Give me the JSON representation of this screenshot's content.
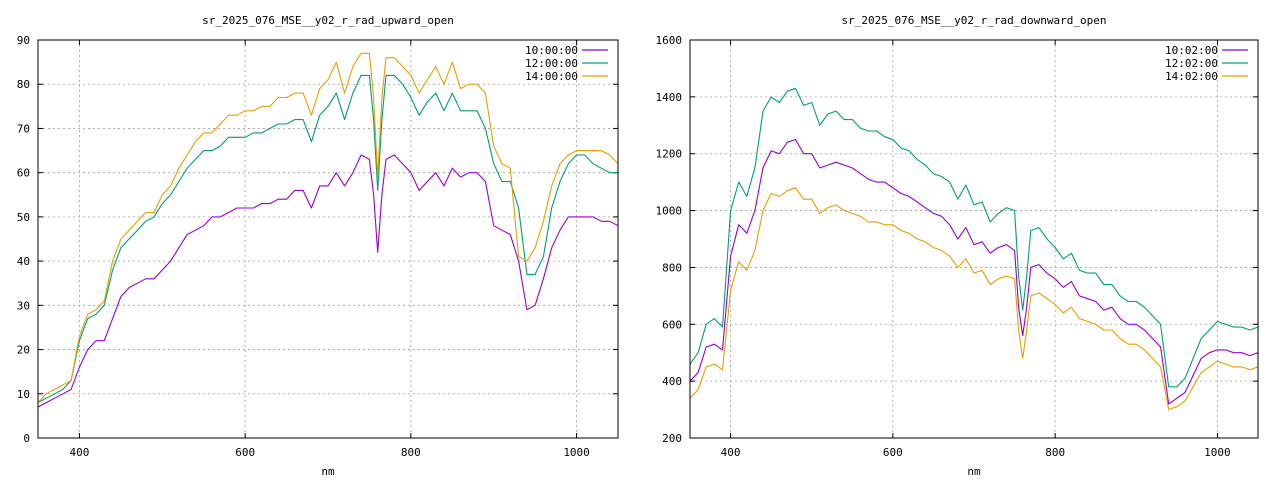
{
  "chart_data": [
    {
      "type": "line",
      "title": "sr_2025_076_MSE__y02_r_rad_upward_open",
      "xlabel": "nm",
      "ylabel": "",
      "xlim": [
        350,
        1050
      ],
      "ylim": [
        0,
        90
      ],
      "xticks": [
        400,
        600,
        800,
        1000
      ],
      "yticks": [
        0,
        10,
        20,
        30,
        40,
        50,
        60,
        70,
        80,
        90
      ],
      "grid": true,
      "legend_position": "top-right",
      "series": [
        {
          "name": "10:00:00",
          "color": "#9400d3",
          "x": [
            350,
            360,
            370,
            380,
            390,
            400,
            410,
            420,
            430,
            440,
            450,
            460,
            470,
            480,
            490,
            500,
            510,
            520,
            530,
            540,
            550,
            560,
            570,
            580,
            590,
            600,
            610,
            620,
            630,
            640,
            650,
            660,
            670,
            680,
            690,
            700,
            710,
            720,
            730,
            740,
            750,
            755,
            760,
            765,
            770,
            780,
            790,
            800,
            810,
            820,
            830,
            840,
            850,
            860,
            870,
            880,
            890,
            900,
            910,
            920,
            930,
            940,
            950,
            960,
            970,
            980,
            990,
            1000,
            1010,
            1020,
            1030,
            1040,
            1050
          ],
          "y": [
            7,
            8,
            9,
            10,
            11,
            16,
            20,
            22,
            22,
            27,
            32,
            34,
            35,
            36,
            36,
            38,
            40,
            43,
            46,
            47,
            48,
            50,
            50,
            51,
            52,
            52,
            52,
            53,
            53,
            54,
            54,
            56,
            56,
            52,
            57,
            57,
            60,
            57,
            60,
            64,
            63,
            55,
            42,
            55,
            63,
            64,
            62,
            60,
            56,
            58,
            60,
            57,
            61,
            59,
            60,
            60,
            58,
            48,
            47,
            46,
            40,
            29,
            30,
            36,
            43,
            47,
            50,
            50,
            50,
            50,
            49,
            49,
            48
          ]
        },
        {
          "name": "12:00:00",
          "color": "#009e73",
          "x": [
            350,
            360,
            370,
            380,
            390,
            400,
            410,
            420,
            430,
            440,
            450,
            460,
            470,
            480,
            490,
            500,
            510,
            520,
            530,
            540,
            550,
            560,
            570,
            580,
            590,
            600,
            610,
            620,
            630,
            640,
            650,
            660,
            670,
            680,
            690,
            700,
            710,
            720,
            730,
            740,
            750,
            755,
            760,
            765,
            770,
            780,
            790,
            800,
            810,
            820,
            830,
            840,
            850,
            860,
            870,
            880,
            890,
            900,
            910,
            920,
            930,
            940,
            950,
            960,
            970,
            980,
            990,
            1000,
            1010,
            1020,
            1030,
            1040,
            1050
          ],
          "y": [
            8,
            9,
            10,
            11,
            13,
            22,
            27,
            28,
            30,
            38,
            43,
            45,
            47,
            49,
            50,
            53,
            55,
            58,
            61,
            63,
            65,
            65,
            66,
            68,
            68,
            68,
            69,
            69,
            70,
            71,
            71,
            72,
            72,
            67,
            73,
            75,
            78,
            72,
            78,
            82,
            82,
            72,
            56,
            72,
            82,
            82,
            80,
            77,
            73,
            76,
            78,
            74,
            78,
            74,
            74,
            74,
            70,
            62,
            58,
            58,
            52,
            37,
            37,
            41,
            52,
            58,
            62,
            64,
            64,
            62,
            61,
            60,
            60
          ]
        },
        {
          "name": "14:00:00",
          "color": "#e69f00",
          "x": [
            350,
            360,
            370,
            380,
            390,
            400,
            410,
            420,
            430,
            440,
            450,
            460,
            470,
            480,
            490,
            500,
            510,
            520,
            530,
            540,
            550,
            560,
            570,
            580,
            590,
            600,
            610,
            620,
            630,
            640,
            650,
            660,
            670,
            680,
            690,
            700,
            710,
            720,
            730,
            740,
            750,
            755,
            760,
            765,
            770,
            780,
            790,
            800,
            810,
            820,
            830,
            840,
            850,
            860,
            870,
            880,
            890,
            900,
            910,
            920,
            930,
            940,
            950,
            960,
            970,
            980,
            990,
            1000,
            1010,
            1020,
            1030,
            1040,
            1050
          ],
          "y": [
            8,
            10,
            11,
            12,
            13,
            23,
            28,
            29,
            31,
            40,
            45,
            47,
            49,
            51,
            51,
            55,
            57,
            61,
            64,
            67,
            69,
            69,
            71,
            73,
            73,
            74,
            74,
            75,
            75,
            77,
            77,
            78,
            78,
            73,
            79,
            81,
            85,
            78,
            84,
            87,
            87,
            77,
            59,
            77,
            86,
            86,
            84,
            82,
            78,
            81,
            84,
            80,
            85,
            79,
            80,
            80,
            78,
            66,
            62,
            61,
            41,
            40,
            43,
            49,
            57,
            62,
            64,
            65,
            65,
            65,
            65,
            64,
            62
          ]
        }
      ]
    },
    {
      "type": "line",
      "title": "sr_2025_076_MSE__y02_r_rad_downward_open",
      "xlabel": "nm",
      "ylabel": "",
      "xlim": [
        350,
        1050
      ],
      "ylim": [
        200,
        1600
      ],
      "xticks": [
        400,
        600,
        800,
        1000
      ],
      "yticks": [
        200,
        400,
        600,
        800,
        1000,
        1200,
        1400,
        1600
      ],
      "grid": true,
      "legend_position": "top-right",
      "series": [
        {
          "name": "10:02:00",
          "color": "#9400d3",
          "x": [
            350,
            360,
            370,
            380,
            390,
            400,
            410,
            420,
            430,
            440,
            450,
            460,
            470,
            480,
            490,
            500,
            510,
            520,
            530,
            540,
            550,
            560,
            570,
            580,
            590,
            600,
            610,
            620,
            630,
            640,
            650,
            660,
            670,
            680,
            690,
            700,
            710,
            720,
            730,
            740,
            750,
            755,
            760,
            765,
            770,
            780,
            790,
            800,
            810,
            820,
            830,
            840,
            850,
            860,
            870,
            880,
            890,
            900,
            910,
            920,
            930,
            940,
            950,
            960,
            970,
            980,
            990,
            1000,
            1010,
            1020,
            1030,
            1040,
            1050
          ],
          "y": [
            400,
            430,
            520,
            530,
            510,
            840,
            950,
            920,
            1000,
            1150,
            1210,
            1200,
            1240,
            1250,
            1200,
            1200,
            1150,
            1160,
            1170,
            1160,
            1150,
            1130,
            1110,
            1100,
            1100,
            1080,
            1060,
            1050,
            1030,
            1010,
            990,
            980,
            950,
            900,
            940,
            880,
            890,
            850,
            870,
            880,
            860,
            660,
            560,
            660,
            800,
            810,
            780,
            760,
            730,
            750,
            700,
            690,
            680,
            650,
            660,
            620,
            600,
            600,
            580,
            550,
            520,
            320,
            340,
            360,
            420,
            480,
            500,
            510,
            510,
            500,
            500,
            490,
            500
          ]
        },
        {
          "name": "12:02:00",
          "color": "#009e73",
          "x": [
            350,
            360,
            370,
            380,
            390,
            400,
            410,
            420,
            430,
            440,
            450,
            460,
            470,
            480,
            490,
            500,
            510,
            520,
            530,
            540,
            550,
            560,
            570,
            580,
            590,
            600,
            610,
            620,
            630,
            640,
            650,
            660,
            670,
            680,
            690,
            700,
            710,
            720,
            730,
            740,
            750,
            755,
            760,
            765,
            770,
            780,
            790,
            800,
            810,
            820,
            830,
            840,
            850,
            860,
            870,
            880,
            890,
            900,
            910,
            920,
            930,
            940,
            950,
            960,
            970,
            980,
            990,
            1000,
            1010,
            1020,
            1030,
            1040,
            1050
          ],
          "y": [
            460,
            500,
            600,
            620,
            590,
            1000,
            1100,
            1050,
            1150,
            1350,
            1400,
            1380,
            1420,
            1430,
            1370,
            1380,
            1300,
            1340,
            1350,
            1320,
            1320,
            1290,
            1280,
            1280,
            1260,
            1250,
            1220,
            1210,
            1180,
            1160,
            1130,
            1120,
            1100,
            1040,
            1090,
            1020,
            1030,
            960,
            990,
            1010,
            1000,
            770,
            650,
            770,
            930,
            940,
            900,
            870,
            830,
            850,
            790,
            780,
            780,
            740,
            740,
            700,
            680,
            680,
            660,
            630,
            600,
            380,
            380,
            410,
            480,
            550,
            580,
            610,
            600,
            590,
            590,
            580,
            590
          ]
        },
        {
          "name": "14:02:00",
          "color": "#e69f00",
          "x": [
            350,
            360,
            370,
            380,
            390,
            400,
            410,
            420,
            430,
            440,
            450,
            460,
            470,
            480,
            490,
            500,
            510,
            520,
            530,
            540,
            550,
            560,
            570,
            580,
            590,
            600,
            610,
            620,
            630,
            640,
            650,
            660,
            670,
            680,
            690,
            700,
            710,
            720,
            730,
            740,
            750,
            755,
            760,
            765,
            770,
            780,
            790,
            800,
            810,
            820,
            830,
            840,
            850,
            860,
            870,
            880,
            890,
            900,
            910,
            920,
            930,
            940,
            950,
            960,
            970,
            980,
            990,
            1000,
            1010,
            1020,
            1030,
            1040,
            1050
          ],
          "y": [
            340,
            370,
            450,
            460,
            440,
            720,
            820,
            790,
            860,
            1000,
            1060,
            1050,
            1070,
            1080,
            1040,
            1040,
            990,
            1010,
            1020,
            1000,
            990,
            980,
            960,
            960,
            950,
            950,
            930,
            920,
            900,
            890,
            870,
            860,
            840,
            800,
            830,
            780,
            790,
            740,
            760,
            770,
            760,
            580,
            480,
            580,
            700,
            710,
            690,
            670,
            640,
            660,
            620,
            610,
            600,
            580,
            580,
            550,
            530,
            530,
            510,
            480,
            450,
            300,
            310,
            330,
            380,
            430,
            450,
            470,
            460,
            450,
            450,
            440,
            450
          ]
        }
      ]
    }
  ]
}
